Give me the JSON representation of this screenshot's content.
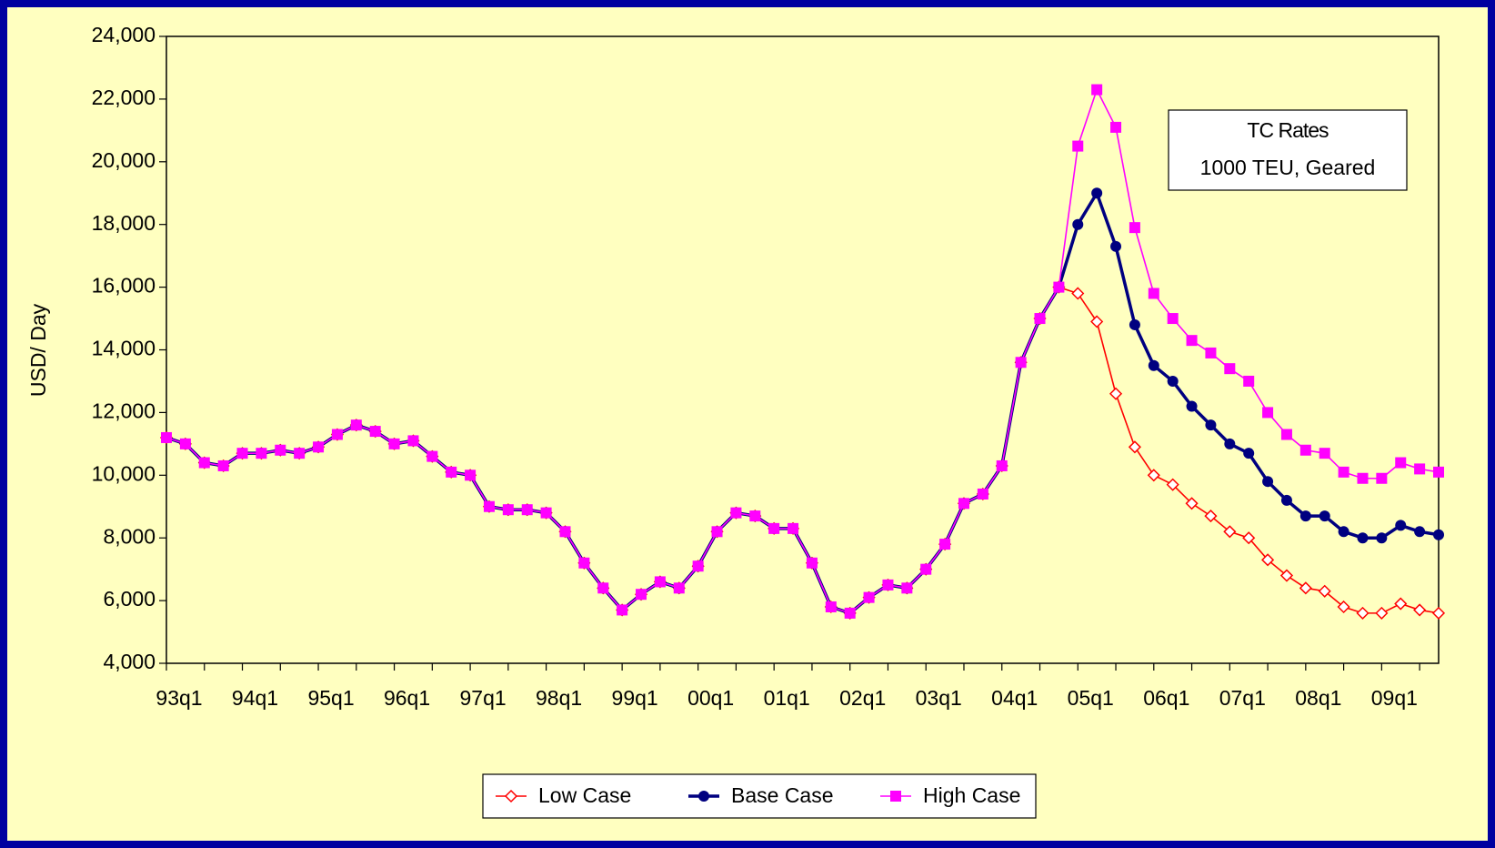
{
  "chart_data": {
    "type": "line",
    "y_label": "USD/ Day",
    "annotation": [
      "TC Rates",
      "1000 TEU, Geared"
    ],
    "categories": [
      "93q1",
      null,
      null,
      null,
      "94q1",
      null,
      null,
      null,
      "95q1",
      null,
      null,
      null,
      "96q1",
      null,
      null,
      null,
      "97q1",
      null,
      null,
      null,
      "98q1",
      null,
      null,
      null,
      "99q1",
      null,
      null,
      null,
      "00q1",
      null,
      null,
      null,
      "01q1",
      null,
      null,
      null,
      "02q1",
      null,
      null,
      null,
      "03q1",
      null,
      null,
      null,
      "04q1",
      null,
      null,
      null,
      "05q1",
      null,
      null,
      null,
      "06q1",
      null,
      null,
      null,
      "07q1",
      null,
      null,
      null,
      "08q1",
      null,
      null,
      null,
      "09q1",
      null,
      null,
      null
    ],
    "series": [
      {
        "name": "Low Case",
        "color": "#ff0000",
        "marker": "diamond-open",
        "values": [
          11200,
          11000,
          10400,
          10300,
          10700,
          10700,
          10800,
          10700,
          10900,
          11300,
          11600,
          11400,
          11000,
          11100,
          10600,
          10100,
          10000,
          9000,
          8900,
          8900,
          8800,
          8200,
          7200,
          6400,
          5700,
          6200,
          6600,
          6400,
          7100,
          8200,
          8800,
          8700,
          8300,
          8300,
          7200,
          5800,
          5600,
          6100,
          6500,
          6400,
          7000,
          7800,
          9100,
          9400,
          10300,
          13600,
          15000,
          16000,
          15800,
          14900,
          12600,
          10900,
          10000,
          9700,
          9100,
          8700,
          8200,
          8000,
          7300,
          6800,
          6400,
          6300,
          5800,
          5600,
          5600,
          5900,
          5700,
          5600
        ]
      },
      {
        "name": "Base Case",
        "color": "#000080",
        "marker": "circle",
        "values": [
          11200,
          11000,
          10400,
          10300,
          10700,
          10700,
          10800,
          10700,
          10900,
          11300,
          11600,
          11400,
          11000,
          11100,
          10600,
          10100,
          10000,
          9000,
          8900,
          8900,
          8800,
          8200,
          7200,
          6400,
          5700,
          6200,
          6600,
          6400,
          7100,
          8200,
          8800,
          8700,
          8300,
          8300,
          7200,
          5800,
          5600,
          6100,
          6500,
          6400,
          7000,
          7800,
          9100,
          9400,
          10300,
          13600,
          15000,
          16000,
          18000,
          19000,
          17300,
          14800,
          13500,
          13000,
          12200,
          11600,
          11000,
          10700,
          9800,
          9200,
          8700,
          8700,
          8200,
          8000,
          8000,
          8400,
          8200,
          8100
        ]
      },
      {
        "name": "High Case",
        "color": "#ff00ff",
        "marker": "square",
        "values": [
          11200,
          11000,
          10400,
          10300,
          10700,
          10700,
          10800,
          10700,
          10900,
          11300,
          11600,
          11400,
          11000,
          11100,
          10600,
          10100,
          10000,
          9000,
          8900,
          8900,
          8800,
          8200,
          7200,
          6400,
          5700,
          6200,
          6600,
          6400,
          7100,
          8200,
          8800,
          8700,
          8300,
          8300,
          7200,
          5800,
          5600,
          6100,
          6500,
          6400,
          7000,
          7800,
          9100,
          9400,
          10300,
          13600,
          15000,
          16000,
          20500,
          22300,
          21100,
          17900,
          15800,
          15000,
          14300,
          13900,
          13400,
          13000,
          12000,
          11300,
          10800,
          10700,
          10100,
          9900,
          9900,
          10400,
          10200,
          10100
        ]
      }
    ],
    "ylim": [
      4000,
      24000
    ],
    "yticks": [
      {
        "value": 4000,
        "label": "4,000"
      },
      {
        "value": 6000,
        "label": "6,000"
      },
      {
        "value": 8000,
        "label": "8,000"
      },
      {
        "value": 10000,
        "label": "10,000"
      },
      {
        "value": 12000,
        "label": "12,000"
      },
      {
        "value": 14000,
        "label": "14,000"
      },
      {
        "value": 16000,
        "label": "16,000"
      },
      {
        "value": 18000,
        "label": "18,000"
      },
      {
        "value": 20000,
        "label": "20,000"
      },
      {
        "value": 22000,
        "label": "22,000"
      },
      {
        "value": 24000,
        "label": "24,000"
      }
    ],
    "grid": false,
    "legend": "bottom",
    "background": "#ffffc0",
    "border": "#0000a0"
  }
}
